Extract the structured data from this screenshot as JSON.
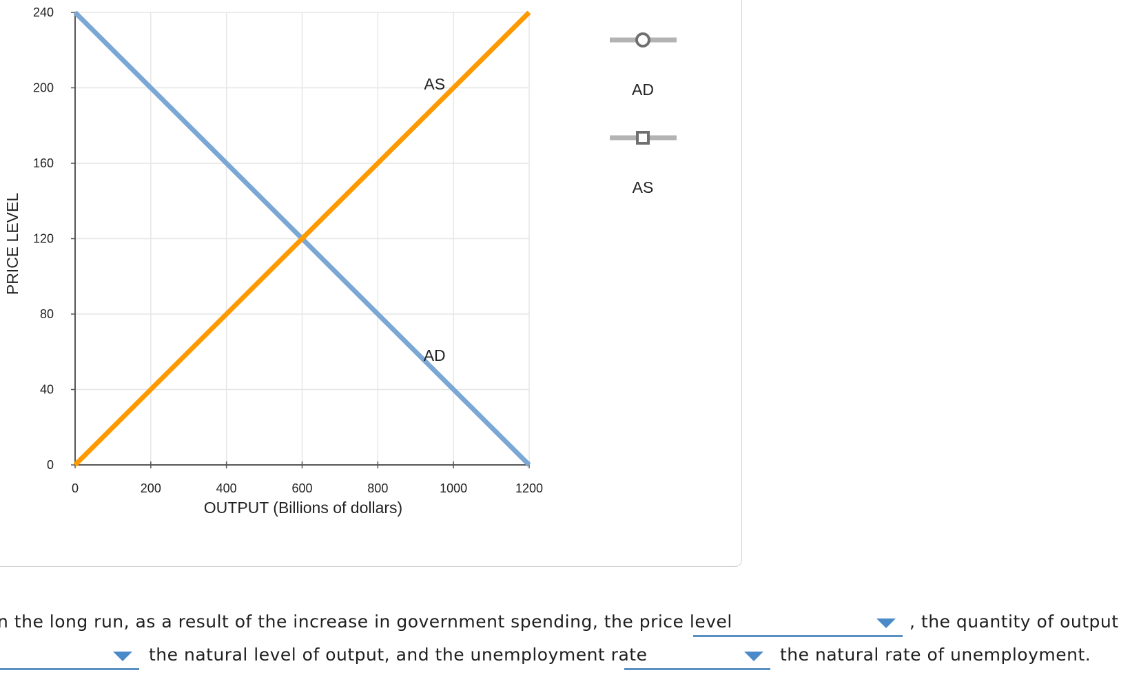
{
  "chart_data": {
    "type": "line",
    "xlabel": "OUTPUT (Billions of dollars)",
    "ylabel": "PRICE LEVEL",
    "xlim": [
      0,
      1200
    ],
    "ylim": [
      0,
      240
    ],
    "x_ticks": [
      0,
      200,
      400,
      600,
      800,
      1000,
      1200
    ],
    "y_ticks": [
      0,
      40,
      80,
      120,
      160,
      200,
      240
    ],
    "grid": true,
    "series": [
      {
        "name": "AD",
        "color": "#7ba7d5",
        "points": [
          [
            0,
            240
          ],
          [
            1200,
            0
          ]
        ],
        "label": "AD",
        "label_at": [
          950,
          58
        ]
      },
      {
        "name": "AS",
        "color": "#ff9900",
        "points": [
          [
            0,
            0
          ],
          [
            1200,
            240
          ]
        ],
        "label": "AS",
        "label_at": [
          950,
          202
        ]
      }
    ]
  },
  "legend_tools": [
    {
      "label": "AD",
      "marker": "circle"
    },
    {
      "label": "AS",
      "marker": "square"
    }
  ],
  "question": {
    "line1_a": "n the long run, as a result of the increase in government spending, the price level",
    "line1_b": ", the quantity of output",
    "line2_a": "the natural level of output, and the unemployment rate",
    "line2_b": "the natural rate of unemployment.",
    "dropdown_price_level": "",
    "dropdown_output": "",
    "dropdown_unemployment": ""
  },
  "colors": {
    "ad": "#7ba7d5",
    "as": "#ff9900",
    "dropdown_accent": "#4a8ac8",
    "legend_gray": "#b3b3b3"
  }
}
